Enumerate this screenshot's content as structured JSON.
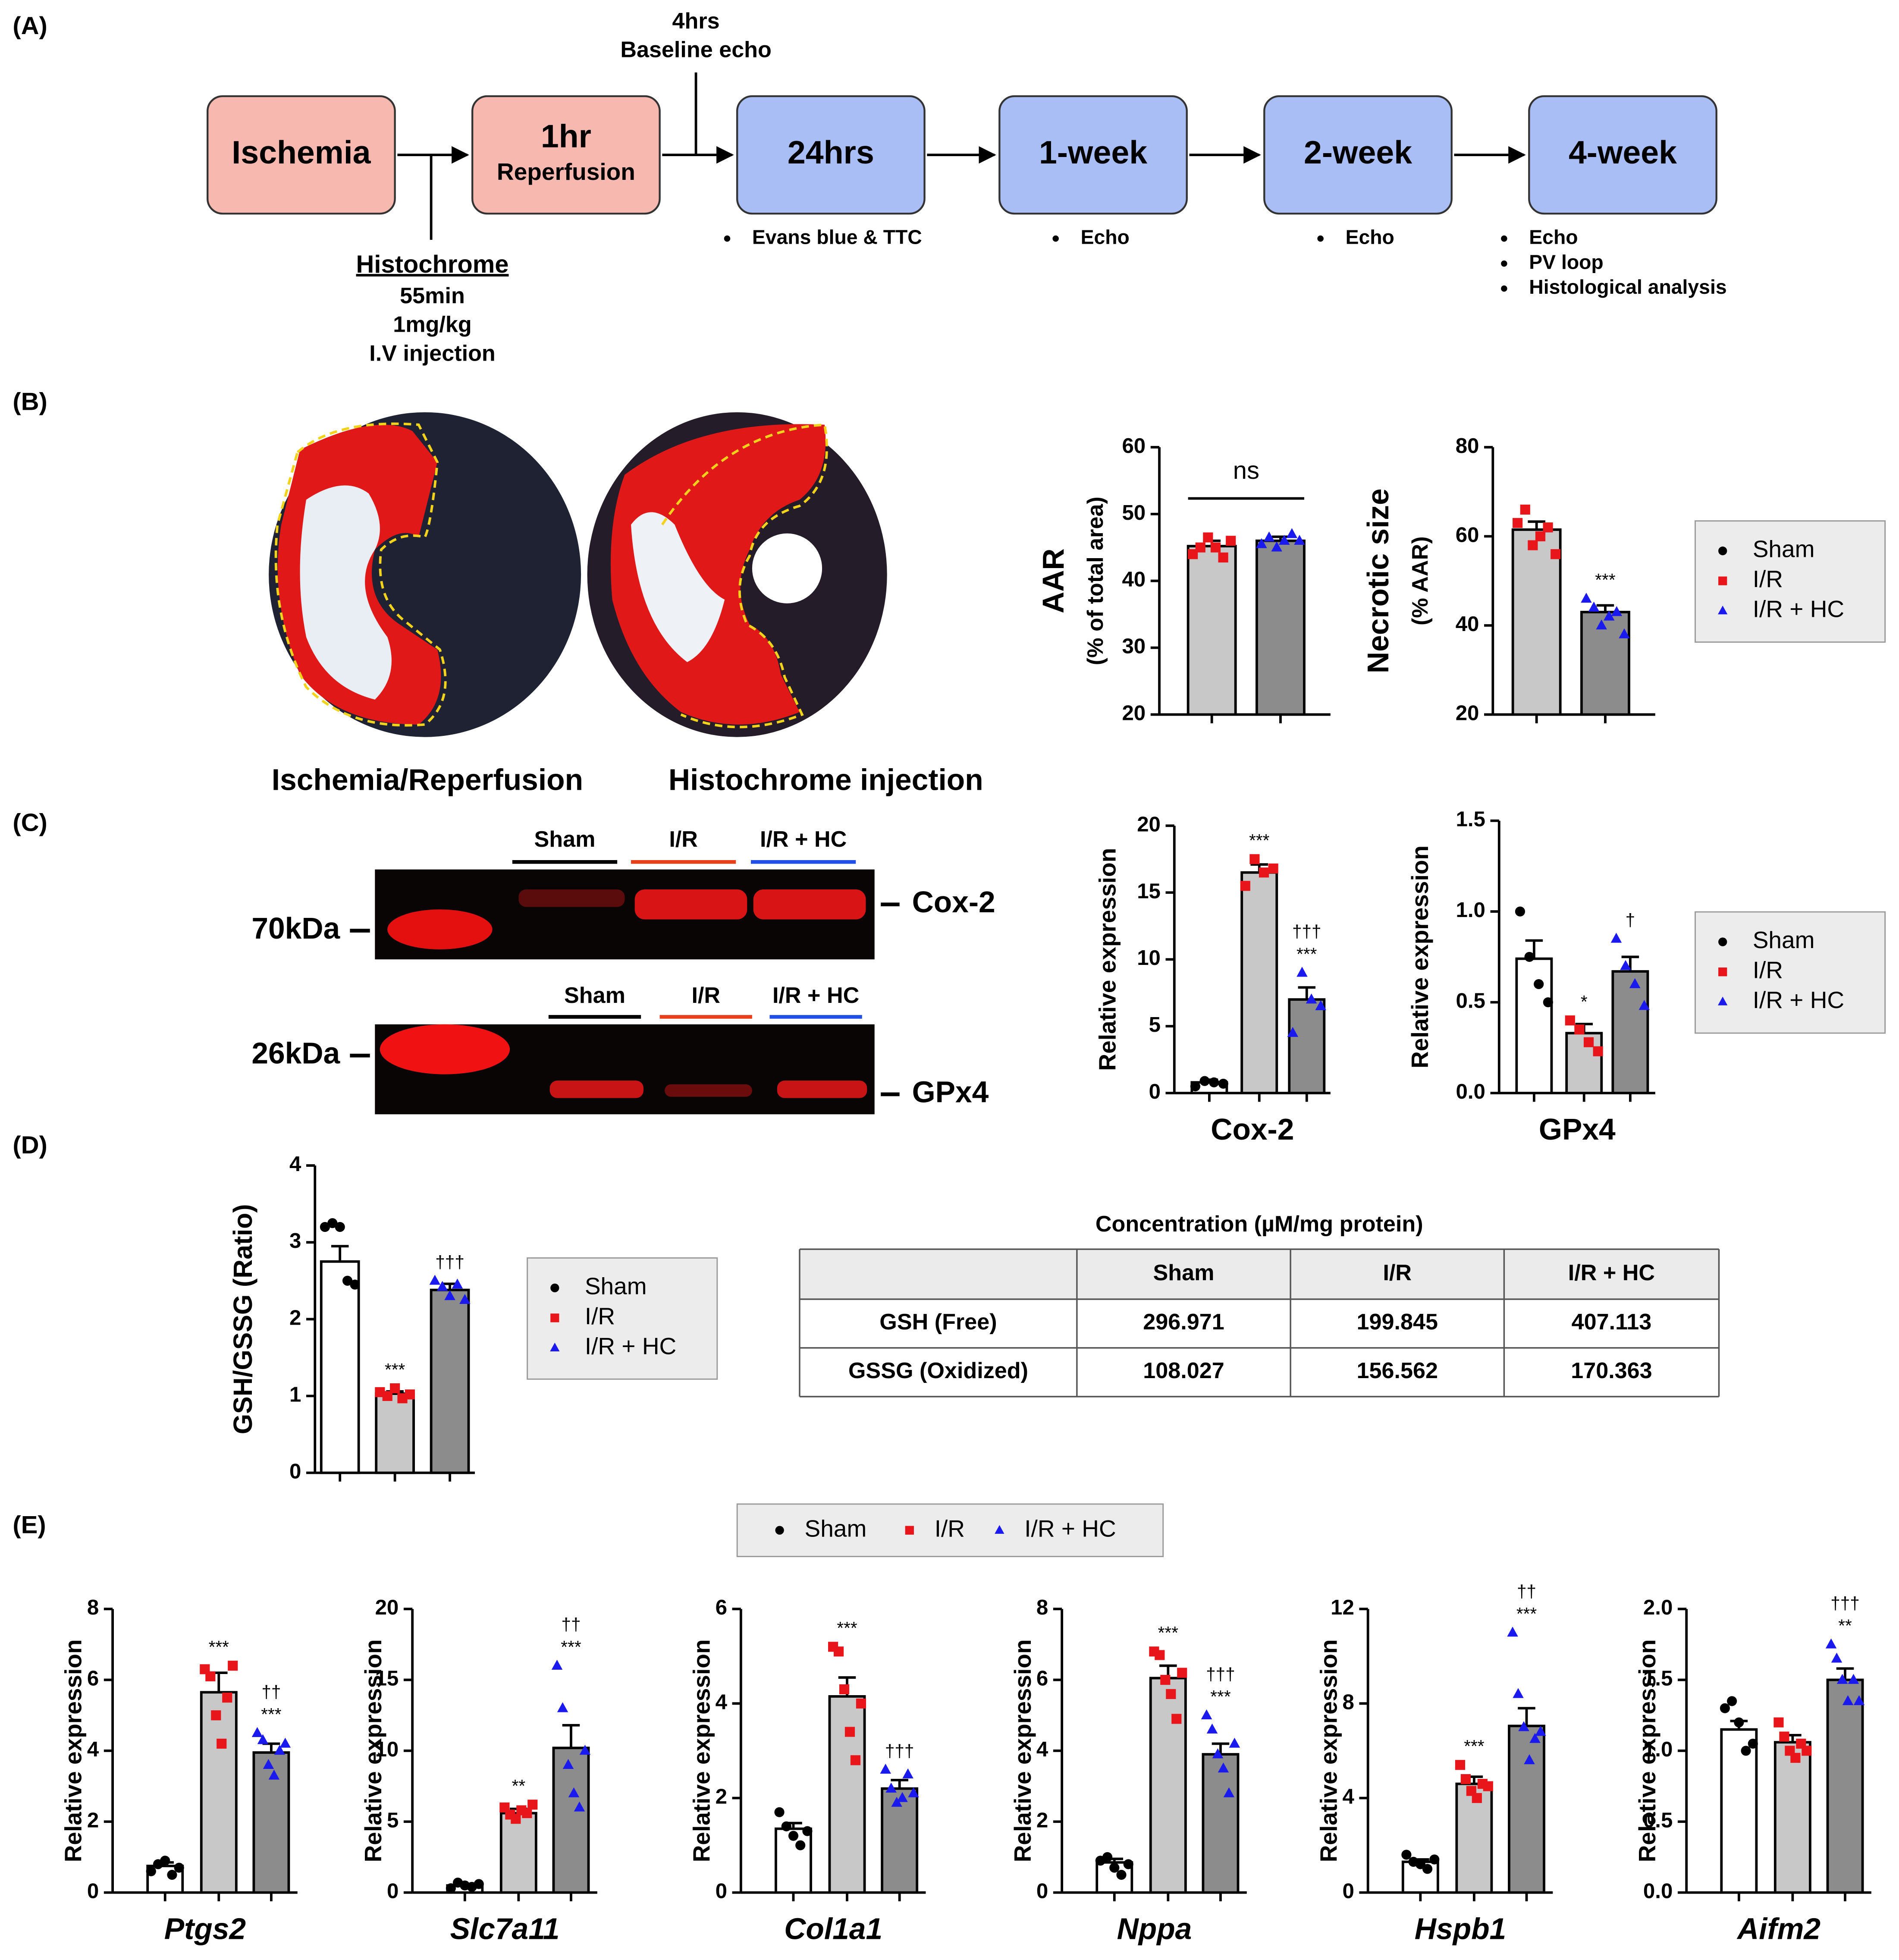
{
  "panel_labels": [
    "(A)",
    "(B)",
    "(C)",
    "(D)",
    "(E)"
  ],
  "timeline": {
    "boxes": [
      {
        "lines": [
          "Ischemia"
        ]
      },
      {
        "lines": [
          "1hr",
          "Reperfusion"
        ]
      },
      {
        "lines": [
          "24hrs"
        ],
        "notes": [
          "Evans blue & TTC"
        ]
      },
      {
        "lines": [
          "1-week"
        ],
        "notes": [
          "Echo"
        ]
      },
      {
        "lines": [
          "2-week"
        ],
        "notes": [
          "Echo"
        ]
      },
      {
        "lines": [
          "4-week"
        ],
        "notes": [
          "Echo",
          "PV loop",
          "Histological analysis"
        ]
      }
    ],
    "baseline": [
      "4hrs",
      "Baseline echo"
    ],
    "injection": {
      "name": "Histochrome",
      "details": [
        "55min",
        "1mg/kg",
        "I.V injection"
      ]
    }
  },
  "heart_captions": [
    "Ischemia/Reperfusion",
    "Histochrome injection"
  ],
  "blots": [
    {
      "marker": "70kDa",
      "protein": "Cox-2",
      "lanes": [
        "Sham",
        "I/R",
        "I/R + HC"
      ]
    },
    {
      "marker": "26kDa",
      "protein": "GPx4",
      "lanes": [
        "Sham",
        "I/R",
        "I/R + HC"
      ]
    }
  ],
  "legends": [
    {
      "entries": [
        {
          "name": "Sham",
          "color": "#000000",
          "shape": "circle"
        },
        {
          "name": "I/R",
          "color": "#e8161a",
          "shape": "square"
        },
        {
          "name": "I/R + HC",
          "color": "#1a1aee",
          "shape": "triangle"
        }
      ]
    },
    {
      "entries": [
        {
          "name": "Sham",
          "color": "#000000",
          "shape": "circle"
        },
        {
          "name": "I/R",
          "color": "#e8161a",
          "shape": "square"
        },
        {
          "name": "I/R + HC",
          "color": "#1a1aee",
          "shape": "triangle"
        }
      ]
    },
    {
      "entries": [
        {
          "name": "Sham",
          "color": "#000000",
          "shape": "circle"
        },
        {
          "name": "I/R",
          "color": "#e8161a",
          "shape": "square"
        },
        {
          "name": "I/R + HC",
          "color": "#1a1aee",
          "shape": "triangle"
        }
      ]
    },
    {
      "entries": [
        {
          "name": "Sham",
          "color": "#000000",
          "shape": "circle"
        },
        {
          "name": "I/R",
          "color": "#e8161a",
          "shape": "square"
        },
        {
          "name": "I/R + HC",
          "color": "#1a1aee",
          "shape": "triangle"
        }
      ]
    }
  ],
  "table": {
    "title": "Concentration (µM/mg protein)",
    "header": [
      "Sham",
      "I/R",
      "I/R + HC"
    ],
    "rows": [
      [
        "GSH (Free)",
        "296.971",
        "199.845",
        "407.113"
      ],
      [
        "GSSG (Oxidized)",
        "108.027",
        "156.562",
        "170.363"
      ]
    ]
  },
  "chart_data": [
    {
      "type": "bar",
      "ylabel": [
        "AAR",
        "(% of total area)"
      ],
      "ylim": [
        20,
        60
      ],
      "yticks": [
        20,
        30,
        40,
        50,
        60
      ],
      "values": [
        45.2,
        46.0
      ],
      "errors": [
        0.8,
        0.6
      ],
      "points": [
        [
          44,
          45,
          46.5,
          45,
          43.5,
          46
        ],
        [
          45.5,
          46.5,
          45,
          46,
          47,
          46
        ]
      ],
      "bar_colors": [
        "#c8c8c8",
        "#8c8c8c"
      ],
      "point_colors": [
        "#e8161a",
        "#1a1aee"
      ],
      "point_shapes": [
        "square",
        "triangle"
      ],
      "annotations": [
        null,
        null
      ],
      "bracket_label": "ns"
    },
    {
      "type": "bar",
      "ylabel": [
        "Necrotic size",
        "(% AAR)"
      ],
      "ylim": [
        20,
        80
      ],
      "yticks": [
        20,
        40,
        60,
        80
      ],
      "values": [
        61.5,
        43.0
      ],
      "errors": [
        1.8,
        1.5
      ],
      "points": [
        [
          63,
          66,
          58,
          60,
          62,
          56
        ],
        [
          46,
          44,
          40,
          42,
          43,
          38
        ]
      ],
      "bar_colors": [
        "#c8c8c8",
        "#8c8c8c"
      ],
      "point_colors": [
        "#e8161a",
        "#1a1aee"
      ],
      "point_shapes": [
        "square",
        "triangle"
      ],
      "annotations": [
        null,
        [
          "***"
        ]
      ]
    },
    {
      "type": "bar",
      "ylabel": [
        "Relative expression"
      ],
      "xlabel": "Cox-2",
      "ylim": [
        0,
        20
      ],
      "yticks": [
        0,
        5,
        10,
        15,
        20
      ],
      "values": [
        0.8,
        16.5,
        7.0
      ],
      "errors": [
        0.2,
        0.6,
        0.9
      ],
      "points": [
        [
          0.5,
          0.9,
          0.8,
          0.7
        ],
        [
          15.5,
          17.5,
          16.5,
          16.8
        ],
        [
          4.5,
          9,
          7,
          6.5
        ]
      ],
      "bar_colors": [
        "#ffffff",
        "#c8c8c8",
        "#8c8c8c"
      ],
      "point_colors": [
        "#000000",
        "#e8161a",
        "#1a1aee"
      ],
      "point_shapes": [
        "circle",
        "square",
        "triangle"
      ],
      "annotations": [
        null,
        [
          "***"
        ],
        [
          "†††",
          "***"
        ]
      ]
    },
    {
      "type": "bar",
      "ylabel": [
        "Relative expression"
      ],
      "xlabel": "GPx4",
      "ylim": [
        0,
        1.5
      ],
      "yticks": [
        {
          "value": 0,
          "label": "0.0"
        },
        0.5,
        {
          "value": 1,
          "label": "1.0"
        },
        1.5
      ],
      "values": [
        0.74,
        0.33,
        0.67
      ],
      "errors": [
        0.1,
        0.05,
        0.08
      ],
      "points": [
        [
          1.0,
          0.75,
          0.6,
          0.5
        ],
        [
          0.4,
          0.35,
          0.28,
          0.23
        ],
        [
          0.85,
          0.7,
          0.6,
          0.48
        ]
      ],
      "bar_colors": [
        "#ffffff",
        "#c8c8c8",
        "#8c8c8c"
      ],
      "point_colors": [
        "#000000",
        "#e8161a",
        "#1a1aee"
      ],
      "point_shapes": [
        "circle",
        "square",
        "triangle"
      ],
      "annotations": [
        null,
        [
          "*"
        ],
        [
          "†"
        ]
      ]
    },
    {
      "type": "bar",
      "ylabel": [
        "GSH/GSSG (Ratio)"
      ],
      "ylim": [
        0,
        4
      ],
      "yticks": [
        0,
        1,
        2,
        3,
        4
      ],
      "values": [
        2.75,
        1.03,
        2.38
      ],
      "errors": [
        0.2,
        0.03,
        0.08
      ],
      "points": [
        [
          3.2,
          3.25,
          3.2,
          2.5,
          2.45
        ],
        [
          1.05,
          1.0,
          1.1,
          0.97,
          1.02
        ],
        [
          2.5,
          2.42,
          2.3,
          2.45,
          2.25
        ]
      ],
      "bar_colors": [
        "#ffffff",
        "#c8c8c8",
        "#8c8c8c"
      ],
      "point_colors": [
        "#000000",
        "#e8161a",
        "#1a1aee"
      ],
      "point_shapes": [
        "circle",
        "square",
        "triangle"
      ],
      "annotations": [
        null,
        [
          "***"
        ],
        [
          "†††"
        ]
      ]
    },
    {
      "type": "bar",
      "ylabel": [
        "Relative expression"
      ],
      "xlabel": "Ptgs2",
      "ylim": [
        0,
        8
      ],
      "yticks": [
        0,
        2,
        4,
        6,
        8
      ],
      "values": [
        0.75,
        5.65,
        3.95
      ],
      "errors": [
        0.1,
        0.55,
        0.25
      ],
      "points": [
        [
          0.6,
          0.8,
          0.9,
          0.5,
          0.7
        ],
        [
          6.3,
          6.1,
          5.0,
          4.2,
          5.5,
          6.4
        ],
        [
          4.5,
          4.3,
          3.6,
          3.3,
          4.0,
          4.2
        ]
      ],
      "bar_colors": [
        "#ffffff",
        "#c8c8c8",
        "#8c8c8c"
      ],
      "point_colors": [
        "#000000",
        "#e8161a",
        "#1a1aee"
      ],
      "point_shapes": [
        "circle",
        "square",
        "triangle"
      ],
      "annotations": [
        null,
        [
          "***"
        ],
        [
          "††",
          "***"
        ]
      ]
    },
    {
      "type": "bar",
      "ylabel": [
        "Relative expression"
      ],
      "xlabel": "Slc7a11",
      "ylim": [
        0,
        20
      ],
      "yticks": [
        0,
        5,
        10,
        15,
        20
      ],
      "values": [
        0.5,
        5.6,
        10.2
      ],
      "errors": [
        0.1,
        0.3,
        1.6
      ],
      "points": [
        [
          0.3,
          0.7,
          0.5,
          0.4,
          0.6
        ],
        [
          6.0,
          5.5,
          5.2,
          5.8,
          5.6,
          6.2
        ],
        [
          16,
          13,
          9,
          7,
          6,
          10
        ]
      ],
      "bar_colors": [
        "#ffffff",
        "#c8c8c8",
        "#8c8c8c"
      ],
      "point_colors": [
        "#000000",
        "#e8161a",
        "#1a1aee"
      ],
      "point_shapes": [
        "circle",
        "square",
        "triangle"
      ],
      "annotations": [
        null,
        [
          "**"
        ],
        [
          "††",
          "***"
        ]
      ]
    },
    {
      "type": "bar",
      "ylabel": [
        "Relative expression"
      ],
      "xlabel": "Col1a1",
      "ylim": [
        0,
        6
      ],
      "yticks": [
        0,
        2,
        4,
        6
      ],
      "values": [
        1.35,
        4.15,
        2.2
      ],
      "errors": [
        0.12,
        0.4,
        0.18
      ],
      "points": [
        [
          1.7,
          1.4,
          1.2,
          1.0,
          1.3
        ],
        [
          5.2,
          5.1,
          4.3,
          3.4,
          2.8,
          4.0
        ],
        [
          2.6,
          2.2,
          1.9,
          2.0,
          2.5,
          2.1
        ]
      ],
      "bar_colors": [
        "#ffffff",
        "#c8c8c8",
        "#8c8c8c"
      ],
      "point_colors": [
        "#000000",
        "#e8161a",
        "#1a1aee"
      ],
      "point_shapes": [
        "circle",
        "square",
        "triangle"
      ],
      "annotations": [
        null,
        [
          "***"
        ],
        [
          "†††"
        ]
      ]
    },
    {
      "type": "bar",
      "ylabel": [
        "Relative expression"
      ],
      "xlabel": "Nppa",
      "ylim": [
        0,
        8
      ],
      "yticks": [
        0,
        2,
        4,
        6,
        8
      ],
      "values": [
        0.85,
        6.05,
        3.9
      ],
      "errors": [
        0.1,
        0.35,
        0.3
      ],
      "points": [
        [
          0.9,
          1.0,
          0.7,
          0.5,
          0.8
        ],
        [
          6.8,
          6.7,
          6.0,
          5.6,
          4.9,
          6.2
        ],
        [
          5.0,
          4.6,
          3.9,
          3.5,
          2.8,
          4.2
        ]
      ],
      "bar_colors": [
        "#ffffff",
        "#c8c8c8",
        "#8c8c8c"
      ],
      "point_colors": [
        "#000000",
        "#e8161a",
        "#1a1aee"
      ],
      "point_shapes": [
        "circle",
        "square",
        "triangle"
      ],
      "annotations": [
        null,
        [
          "***"
        ],
        [
          "†††",
          "***"
        ]
      ]
    },
    {
      "type": "bar",
      "ylabel": [
        "Relative expression"
      ],
      "xlabel": "Hspb1",
      "ylim": [
        0,
        12
      ],
      "yticks": [
        0,
        4,
        8,
        12
      ],
      "values": [
        1.3,
        4.6,
        7.05
      ],
      "errors": [
        0.1,
        0.3,
        0.75
      ],
      "points": [
        [
          1.6,
          1.3,
          1.2,
          1.0,
          1.4
        ],
        [
          5.4,
          4.8,
          4.3,
          4.0,
          4.6,
          4.5
        ],
        [
          11,
          8.4,
          7,
          5.6,
          6.5,
          6.8
        ]
      ],
      "bar_colors": [
        "#ffffff",
        "#c8c8c8",
        "#8c8c8c"
      ],
      "point_colors": [
        "#000000",
        "#e8161a",
        "#1a1aee"
      ],
      "point_shapes": [
        "circle",
        "square",
        "triangle"
      ],
      "annotations": [
        null,
        [
          "***"
        ],
        [
          "††",
          "***"
        ]
      ]
    },
    {
      "type": "bar",
      "ylabel": [
        "Relative expression"
      ],
      "xlabel": "Aifm2",
      "ylim": [
        0,
        2
      ],
      "yticks": [
        {
          "value": 0,
          "label": "0.0"
        },
        0.5,
        {
          "value": 1,
          "label": "1.0"
        },
        1.5,
        {
          "value": 2,
          "label": "2.0"
        }
      ],
      "values": [
        1.15,
        1.06,
        1.5
      ],
      "errors": [
        0.06,
        0.05,
        0.08
      ],
      "points": [
        [
          1.3,
          1.35,
          1.2,
          1.0,
          1.05
        ],
        [
          1.2,
          1.1,
          1.0,
          0.95,
          1.05,
          1.0
        ],
        [
          1.75,
          1.65,
          1.5,
          1.35,
          1.5,
          1.35
        ]
      ],
      "bar_colors": [
        "#ffffff",
        "#c8c8c8",
        "#8c8c8c"
      ],
      "point_colors": [
        "#000000",
        "#e8161a",
        "#1a1aee"
      ],
      "point_shapes": [
        "circle",
        "square",
        "triangle"
      ],
      "annotations": [
        null,
        null,
        [
          "†††",
          "**"
        ]
      ]
    }
  ]
}
